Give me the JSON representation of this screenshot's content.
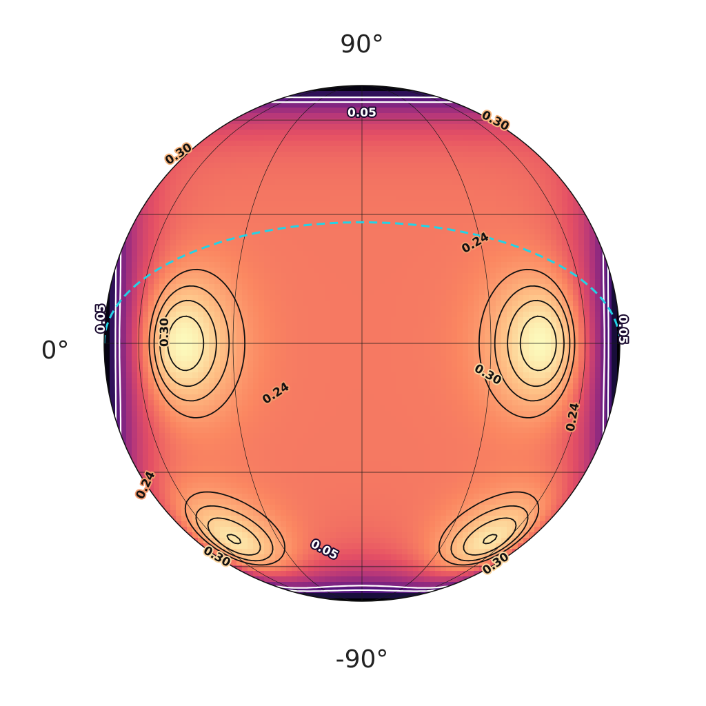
{
  "chart_data": {
    "type": "heatmap",
    "projection": "orthographic",
    "colormap": "magma",
    "grid": true,
    "tick_labels": {
      "top": "90°",
      "left": "0°",
      "bottom": "-90°"
    },
    "minima": [
      {
        "lon": 0,
        "lat": 90
      },
      {
        "lon": 0,
        "lat": -90
      },
      {
        "lon": -90,
        "lat": 0
      },
      {
        "lon": 90,
        "lat": 0
      }
    ],
    "maxima": [
      {
        "lon": -45,
        "lat": 0
      },
      {
        "lon": 45,
        "lat": 0
      },
      {
        "lon": -50,
        "lat": -52
      },
      {
        "lon": 50,
        "lat": -52
      }
    ],
    "contour_levels_black": [
      0.24,
      0.27,
      0.3,
      0.33
    ],
    "contour_levels_white": [
      0.05,
      0.1
    ],
    "contour_labels": [
      {
        "text": "0.05",
        "color": "white"
      },
      {
        "text": "0.05",
        "color": "white"
      },
      {
        "text": "0.05",
        "color": "white"
      },
      {
        "text": "0.05",
        "color": "white"
      },
      {
        "text": "0.30",
        "color": "black"
      },
      {
        "text": "0.30",
        "color": "black"
      },
      {
        "text": "0.30",
        "color": "black"
      },
      {
        "text": "0.30",
        "color": "black"
      },
      {
        "text": "0.30",
        "color": "black"
      },
      {
        "text": "0.30",
        "color": "black"
      },
      {
        "text": "0.24",
        "color": "black"
      },
      {
        "text": "0.24",
        "color": "black"
      },
      {
        "text": "0.24",
        "color": "black"
      },
      {
        "text": "0.24",
        "color": "black"
      }
    ],
    "dashed_line": {
      "color": "#22d3e6",
      "style": "dashed",
      "orientation": "tilted great circle below equator"
    }
  }
}
